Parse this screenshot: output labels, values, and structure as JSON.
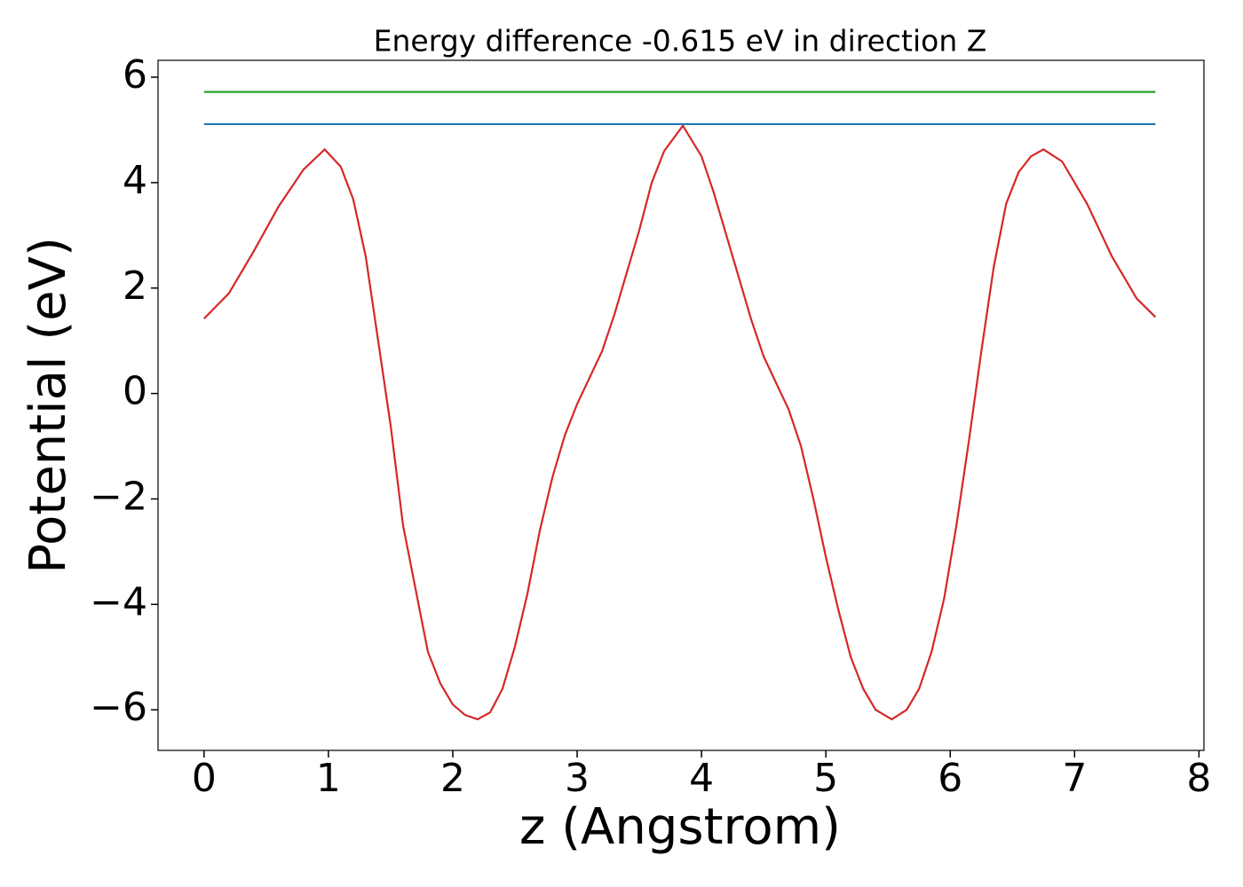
{
  "chart_data": {
    "type": "line",
    "title": "Energy difference -0.615 eV in direction Z",
    "xlabel": "z (Angstrom)",
    "ylabel": "Potential (eV)",
    "xlim": [
      -0.37,
      8.04
    ],
    "ylim": [
      -6.77,
      6.32
    ],
    "xticks": [
      0,
      1,
      2,
      3,
      4,
      5,
      6,
      7,
      8
    ],
    "yticks": [
      {
        "value": -6,
        "label": "−6"
      },
      {
        "value": -4,
        "label": "−4"
      },
      {
        "value": -2,
        "label": "−2"
      },
      0,
      2,
      4,
      6
    ],
    "series": [
      {
        "color": "#d62728",
        "x": [
          0,
          0.2,
          0.4,
          0.6,
          0.8,
          0.97,
          1.1,
          1.2,
          1.3,
          1.4,
          1.5,
          1.6,
          1.7,
          1.8,
          1.9,
          2.0,
          2.1,
          2.2,
          2.3,
          2.4,
          2.5,
          2.6,
          2.7,
          2.8,
          2.9,
          3.0,
          3.1,
          3.2,
          3.3,
          3.4,
          3.5,
          3.6,
          3.7,
          3.85,
          4.0,
          4.1,
          4.2,
          4.3,
          4.4,
          4.5,
          4.6,
          4.7,
          4.8,
          4.9,
          5.0,
          5.1,
          5.2,
          5.3,
          5.4,
          5.53,
          5.65,
          5.75,
          5.85,
          5.95,
          6.05,
          6.15,
          6.25,
          6.35,
          6.45,
          6.55,
          6.65,
          6.75,
          6.9,
          7.1,
          7.3,
          7.5,
          7.65
        ],
        "values": [
          1.42,
          1.9,
          2.7,
          3.55,
          4.25,
          4.63,
          4.3,
          3.68,
          2.6,
          1.0,
          -0.6,
          -2.5,
          -3.7,
          -4.9,
          -5.5,
          -5.9,
          -6.1,
          -6.18,
          -6.05,
          -5.6,
          -4.8,
          -3.8,
          -2.6,
          -1.6,
          -0.8,
          -0.2,
          0.3,
          0.8,
          1.5,
          2.3,
          3.1,
          4.0,
          4.6,
          5.08,
          4.5,
          3.8,
          3.0,
          2.2,
          1.4,
          0.7,
          0.2,
          -0.3,
          -1.0,
          -2.0,
          -3.1,
          -4.1,
          -5.0,
          -5.6,
          -6.0,
          -6.18,
          -6.0,
          -5.6,
          -4.9,
          -3.9,
          -2.5,
          -0.9,
          0.8,
          2.4,
          3.6,
          4.2,
          4.5,
          4.63,
          4.4,
          3.6,
          2.6,
          1.8,
          1.45
        ]
      },
      {
        "color": "#2ca02c",
        "x": [
          0,
          7.65
        ],
        "values": [
          5.72,
          5.72
        ]
      },
      {
        "color": "#1f77b4",
        "x": [
          0,
          7.65
        ],
        "values": [
          5.11,
          5.11
        ]
      }
    ]
  }
}
